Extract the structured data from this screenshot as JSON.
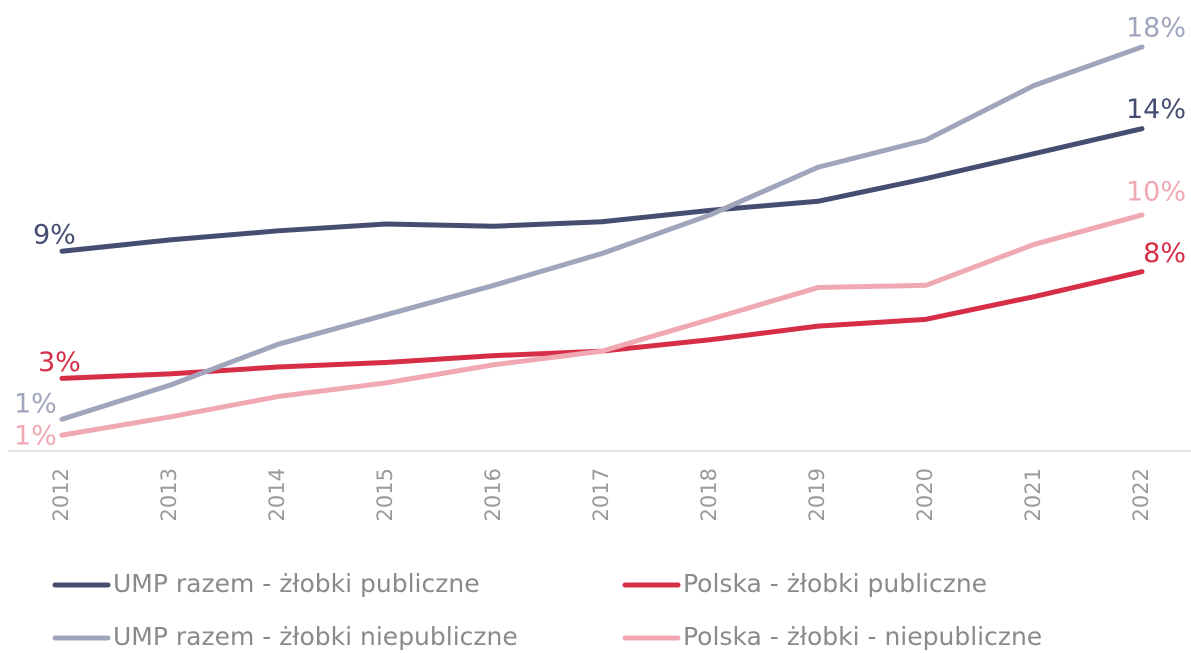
{
  "chart_data": {
    "type": "line",
    "x": [
      2012,
      2013,
      2014,
      2015,
      2016,
      2017,
      2018,
      2019,
      2020,
      2021,
      2022
    ],
    "ylim": [
      0,
      20
    ],
    "series": [
      {
        "name": "UMP razem - żłobki publiczne",
        "color": "#454e70",
        "values": [
          8.8,
          9.3,
          9.7,
          10.0,
          9.9,
          10.1,
          10.6,
          11.0,
          12.0,
          13.1,
          14.2
        ],
        "value_labels": [
          "9%",
          null,
          null,
          null,
          null,
          null,
          null,
          null,
          null,
          null,
          "14%"
        ]
      },
      {
        "name": "Polska - żłobki publiczne",
        "color": "#d72e48",
        "values": [
          3.2,
          3.4,
          3.7,
          3.9,
          4.2,
          4.4,
          4.9,
          5.5,
          5.8,
          6.8,
          7.9
        ],
        "value_labels": [
          "3%",
          null,
          null,
          null,
          null,
          null,
          null,
          null,
          null,
          null,
          "8%"
        ]
      },
      {
        "name": "UMP razem - żłobki niepubliczne",
        "color": "#a0a5bb",
        "values": [
          1.4,
          2.9,
          4.7,
          6.0,
          7.3,
          8.7,
          10.4,
          12.5,
          13.7,
          16.1,
          17.8
        ],
        "value_labels": [
          "1%",
          null,
          null,
          null,
          null,
          null,
          null,
          null,
          null,
          null,
          "18%"
        ]
      },
      {
        "name": "Polska - żłobki - niepubliczne",
        "color": "#f0a9b3",
        "values": [
          0.7,
          1.5,
          2.4,
          3.0,
          3.8,
          4.4,
          5.8,
          7.2,
          7.3,
          9.1,
          10.4
        ],
        "value_labels": [
          "1%",
          null,
          null,
          null,
          null,
          null,
          null,
          null,
          null,
          null,
          "10%"
        ]
      }
    ]
  }
}
